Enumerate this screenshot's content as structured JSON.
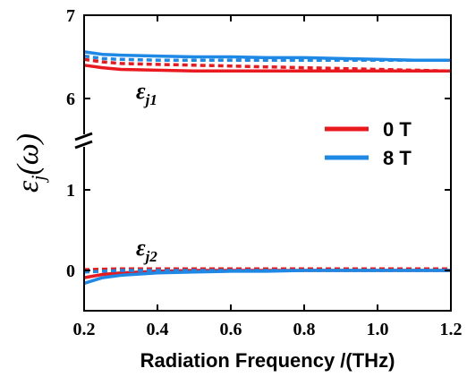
{
  "chart_data": {
    "type": "line",
    "xlabel": "Radiation Frequency /(THz)",
    "ylabel": {
      "main": "ε",
      "sub": "j",
      "rest": "(ω)"
    },
    "xlim": [
      0.2,
      1.2
    ],
    "x_ticks": [
      "0.2",
      "0.4",
      "0.6",
      "0.8",
      "1.0",
      "1.2"
    ],
    "y_axis_broken": true,
    "upper_panel": {
      "ylim": [
        6,
        7
      ],
      "y_ticks": [
        "6",
        "7"
      ]
    },
    "lower_panel": {
      "ylim": [
        -0.5,
        1
      ],
      "y_ticks": [
        "0",
        "1"
      ]
    },
    "annotations": [
      {
        "main": "ε",
        "sub": "j1"
      },
      {
        "main": "ε",
        "sub": "j2"
      }
    ],
    "legend": {
      "placement": "right",
      "entries": [
        {
          "label": "0 T",
          "color": "#e8191f"
        },
        {
          "label": "8 T",
          "color": "#1e88e5"
        }
      ]
    },
    "series": [
      {
        "legend": "0 T",
        "component": "εj1",
        "style": "solid",
        "color": "#e8191f",
        "x": [
          0.2,
          0.25,
          0.3,
          0.4,
          0.5,
          0.6,
          0.7,
          0.8,
          0.9,
          1.0,
          1.1,
          1.2
        ],
        "y": [
          6.4,
          6.37,
          6.35,
          6.34,
          6.33,
          6.33,
          6.33,
          6.33,
          6.33,
          6.33,
          6.33,
          6.33
        ]
      },
      {
        "legend": "0 T",
        "component": "εj1",
        "style": "dashed",
        "color": "#e8191f",
        "x": [
          0.2,
          0.25,
          0.3,
          0.4,
          0.5,
          0.6,
          0.7,
          0.8,
          0.9,
          1.0,
          1.1,
          1.2
        ],
        "y": [
          6.47,
          6.44,
          6.42,
          6.41,
          6.4,
          6.39,
          6.38,
          6.37,
          6.36,
          6.35,
          6.34,
          6.33
        ]
      },
      {
        "legend": "8 T",
        "component": "εj1",
        "style": "solid",
        "color": "#1e88e5",
        "x": [
          0.2,
          0.25,
          0.3,
          0.4,
          0.5,
          0.6,
          0.7,
          0.8,
          0.9,
          1.0,
          1.1,
          1.2
        ],
        "y": [
          6.56,
          6.53,
          6.52,
          6.51,
          6.5,
          6.5,
          6.49,
          6.49,
          6.48,
          6.47,
          6.46,
          6.46
        ]
      },
      {
        "legend": "8 T",
        "component": "εj1",
        "style": "dashed",
        "color": "#1e88e5",
        "x": [
          0.2,
          0.25,
          0.3,
          0.4,
          0.5,
          0.6,
          0.7,
          0.8,
          0.9,
          1.0,
          1.1,
          1.2
        ],
        "y": [
          6.51,
          6.48,
          6.47,
          6.46,
          6.46,
          6.46,
          6.46,
          6.46,
          6.46,
          6.46,
          6.46,
          6.46
        ]
      },
      {
        "legend": "0 T",
        "component": "εj2",
        "style": "solid",
        "color": "#e8191f",
        "x": [
          0.2,
          0.25,
          0.3,
          0.4,
          0.5,
          0.6,
          0.7,
          0.8,
          0.9,
          1.0,
          1.1,
          1.2
        ],
        "y": [
          -0.09,
          -0.05,
          -0.03,
          -0.01,
          0.0,
          0.0,
          0.0,
          0.0,
          0.0,
          0.0,
          0.0,
          0.0
        ]
      },
      {
        "legend": "0 T",
        "component": "εj2",
        "style": "dashed",
        "color": "#e8191f",
        "x": [
          0.2,
          0.25,
          0.3,
          0.4,
          0.5,
          0.6,
          0.7,
          0.8,
          0.9,
          1.0,
          1.1,
          1.2
        ],
        "y": [
          0.01,
          0.015,
          0.02,
          0.02,
          0.02,
          0.02,
          0.02,
          0.02,
          0.02,
          0.02,
          0.02,
          0.02
        ]
      },
      {
        "legend": "8 T",
        "component": "εj2",
        "style": "solid",
        "color": "#1e88e5",
        "x": [
          0.2,
          0.25,
          0.3,
          0.4,
          0.5,
          0.6,
          0.7,
          0.8,
          0.9,
          1.0,
          1.1,
          1.2
        ],
        "y": [
          -0.16,
          -0.09,
          -0.06,
          -0.03,
          -0.02,
          -0.01,
          -0.01,
          0.0,
          0.0,
          0.0,
          0.0,
          0.0
        ]
      },
      {
        "legend": "8 T",
        "component": "εj2",
        "style": "dashed",
        "color": "#1e88e5",
        "x": [
          0.2,
          0.25,
          0.3,
          0.4,
          0.5,
          0.6,
          0.7,
          0.8,
          0.9,
          1.0,
          1.1,
          1.2
        ],
        "y": [
          -0.02,
          -0.01,
          0.0,
          0.0,
          0.0,
          0.0,
          0.0,
          0.0,
          0.0,
          0.0,
          0.0,
          0.0
        ]
      }
    ]
  }
}
